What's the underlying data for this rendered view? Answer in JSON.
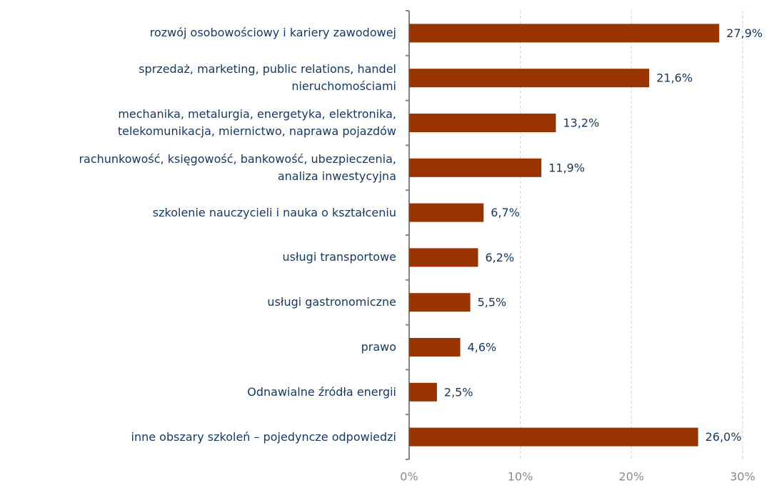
{
  "chart_data": {
    "type": "bar",
    "orientation": "horizontal",
    "categories": [
      "rozwój osobowościowy i kariery zawodowej",
      "sprzedaż, marketing, public relations, handel\nnieruchomościami",
      "mechanika, metalurgia, energetyka, elektronika,\ntelekomunikacja, miernictwo, naprawa pojazdów",
      "rachunkowość, księgowość, bankowość, ubezpieczenia,\nanaliza inwestycyjna",
      "szkolenie nauczycieli i nauka o kształceniu",
      "usługi transportowe",
      "usługi gastronomiczne",
      "prawo",
      "Odnawialne źródła energii",
      "inne obszary szkoleń – pojedyncze odpowiedzi"
    ],
    "values": [
      27.9,
      21.6,
      13.2,
      11.9,
      6.7,
      6.2,
      5.5,
      4.6,
      2.5,
      26.0
    ],
    "value_labels": [
      "27,9%",
      "21,6%",
      "13,2%",
      "11,9%",
      "6,7%",
      "6,2%",
      "5,5%",
      "4,6%",
      "2,5%",
      "26,0%"
    ],
    "color": "#993300",
    "xlim": [
      0,
      30
    ],
    "xticks": [
      {
        "value": 0,
        "label": "0%"
      },
      {
        "value": 10,
        "label": "10%"
      },
      {
        "value": 20,
        "label": "20%"
      },
      {
        "value": 30,
        "label": "30%"
      }
    ],
    "grid": true
  }
}
